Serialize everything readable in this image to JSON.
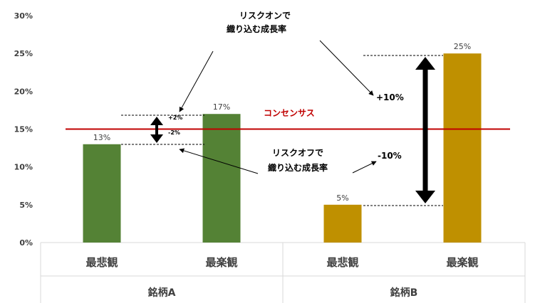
{
  "chart_data": {
    "type": "bar",
    "groups": [
      {
        "name": "銘柄A",
        "categories": [
          "最悲観",
          "最楽観"
        ],
        "values": [
          13,
          17
        ],
        "labels": [
          "13%",
          "17%"
        ],
        "color": "#548235"
      },
      {
        "name": "銘柄B",
        "categories": [
          "最悲観",
          "最楽観"
        ],
        "values": [
          5,
          25
        ],
        "labels": [
          "5%",
          "25%"
        ],
        "color": "#bf9000"
      }
    ],
    "ylim": [
      0,
      30
    ],
    "yticks": [
      "0%",
      "5%",
      "10%",
      "15%",
      "20%",
      "25%",
      "30%"
    ],
    "consensus": {
      "value": 15,
      "label": "コンセンサス",
      "color": "#c00000"
    },
    "annotations": {
      "risk_on_line1": "リスクオンで",
      "risk_on_line2": "織り込む成長率",
      "risk_off_line1": "リスクオフで",
      "risk_off_line2": "織り込む成長率",
      "a_up": "+2%",
      "a_down": "-2%",
      "b_up": "+10%",
      "b_down": "-10%"
    }
  }
}
